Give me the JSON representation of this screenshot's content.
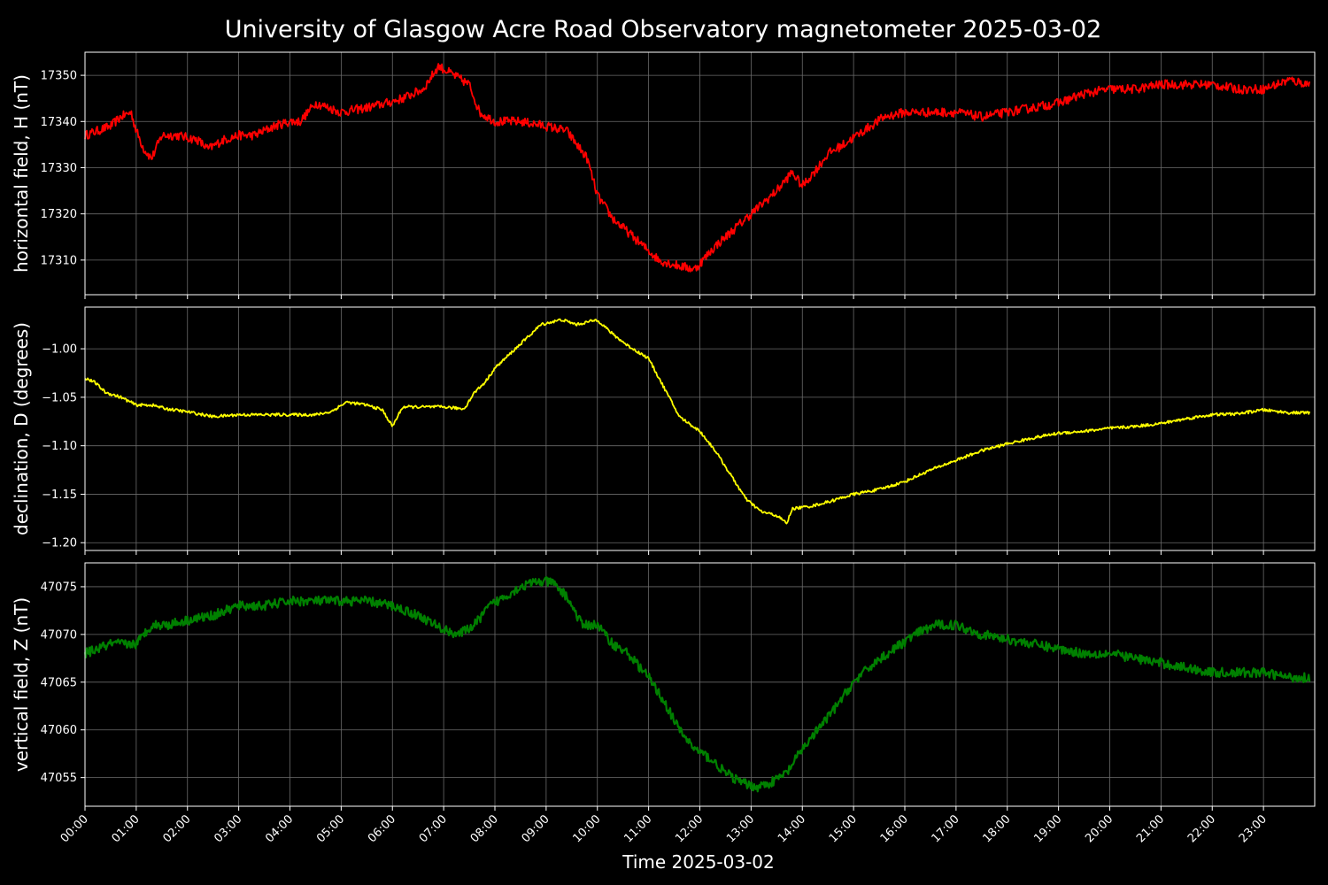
{
  "chart_data": {
    "type": "line",
    "title": "University of Glasgow Acre Road Observatory magnetometer 2025-03-02",
    "xlabel": "Time 2025-03-02",
    "x_unit": "hours",
    "xlim": [
      0,
      24
    ],
    "x_tick_labels": [
      "00:00",
      "01:00",
      "02:00",
      "03:00",
      "04:00",
      "05:00",
      "06:00",
      "07:00",
      "08:00",
      "09:00",
      "10:00",
      "11:00",
      "12:00",
      "13:00",
      "14:00",
      "15:00",
      "16:00",
      "17:00",
      "18:00",
      "19:00",
      "20:00",
      "21:00",
      "22:00",
      "23:00"
    ],
    "grid": true,
    "panels": [
      {
        "ylabel": "horizontal field, H (nT)",
        "color": "#ff0000",
        "ylim": [
          17302.5,
          17355
        ],
        "y_ticks": [
          17310,
          17320,
          17330,
          17340,
          17350
        ],
        "y_tick_labels": [
          "17310",
          "17320",
          "17330",
          "17340",
          "17350"
        ],
        "noise": 1.0,
        "x": [
          0,
          0.25,
          0.5,
          0.7,
          0.9,
          1.0,
          1.15,
          1.3,
          1.5,
          1.8,
          2.2,
          2.4,
          2.7,
          3.0,
          3.3,
          3.7,
          4.0,
          4.2,
          4.5,
          5.0,
          5.5,
          5.9,
          6.2,
          6.6,
          6.9,
          7.2,
          7.5,
          7.7,
          8.0,
          8.5,
          9.0,
          9.4,
          9.8,
          10.0,
          10.3,
          10.6,
          10.9,
          11.2,
          11.5,
          11.9,
          12.3,
          12.7,
          13.1,
          13.5,
          13.8,
          14.0,
          14.3,
          14.5,
          14.8,
          15.2,
          15.6,
          16.0,
          16.5,
          17.0,
          17.5,
          18.0,
          18.5,
          19.0,
          19.5,
          20.0,
          20.5,
          21.0,
          21.5,
          22.0,
          22.5,
          23.0,
          23.5,
          23.9
        ],
        "y": [
          17337,
          17338,
          17339,
          17341,
          17342,
          17338,
          17334,
          17332,
          17337,
          17337,
          17336,
          17334,
          17336,
          17337,
          17337,
          17339,
          17340,
          17340,
          17344,
          17342,
          17343,
          17344,
          17345,
          17347,
          17352,
          17350,
          17348,
          17342,
          17340,
          17340,
          17339,
          17338,
          17332,
          17324,
          17319,
          17316,
          17313,
          17310,
          17309,
          17308,
          17313,
          17317,
          17321,
          17325,
          17329,
          17326,
          17330,
          17333,
          17335,
          17338,
          17341,
          17342,
          17342,
          17342,
          17341,
          17342,
          17343,
          17344,
          17346,
          17347,
          17347,
          17348,
          17348,
          17348,
          17347,
          17347,
          17349,
          17348
        ]
      },
      {
        "ylabel": "declination, D (degrees)",
        "color": "#ffff00",
        "ylim": [
          -1.208,
          -0.957
        ],
        "y_ticks": [
          -1.2,
          -1.15,
          -1.1,
          -1.05,
          -1.0
        ],
        "y_tick_labels": [
          "−1.20",
          "−1.15",
          "−1.10",
          "−1.05",
          "−1.00"
        ],
        "noise": 0.0015,
        "x": [
          0,
          0.2,
          0.4,
          0.7,
          1.0,
          1.3,
          1.6,
          2.0,
          2.5,
          3.0,
          3.5,
          4.0,
          4.5,
          4.8,
          5.1,
          5.5,
          5.8,
          6.0,
          6.2,
          6.5,
          7.0,
          7.4,
          7.6,
          7.8,
          8.0,
          8.3,
          8.6,
          8.9,
          9.3,
          9.6,
          10.0,
          10.3,
          10.6,
          11.0,
          11.3,
          11.6,
          12.0,
          12.3,
          12.6,
          12.9,
          13.2,
          13.5,
          13.7,
          13.8,
          14.2,
          14.5,
          15.0,
          15.5,
          16.0,
          16.5,
          17.0,
          17.5,
          18.0,
          18.5,
          19.0,
          19.5,
          20.0,
          20.5,
          21.0,
          21.5,
          22.0,
          22.5,
          23.0,
          23.5,
          23.9
        ],
        "y": [
          -1.03,
          -1.035,
          -1.045,
          -1.05,
          -1.058,
          -1.058,
          -1.062,
          -1.065,
          -1.07,
          -1.068,
          -1.068,
          -1.068,
          -1.068,
          -1.065,
          -1.055,
          -1.058,
          -1.063,
          -1.08,
          -1.06,
          -1.06,
          -1.06,
          -1.062,
          -1.045,
          -1.035,
          -1.02,
          -1.005,
          -0.99,
          -0.975,
          -0.97,
          -0.975,
          -0.97,
          -0.985,
          -0.997,
          -1.01,
          -1.04,
          -1.07,
          -1.085,
          -1.105,
          -1.13,
          -1.155,
          -1.168,
          -1.172,
          -1.18,
          -1.165,
          -1.162,
          -1.158,
          -1.15,
          -1.145,
          -1.137,
          -1.125,
          -1.115,
          -1.105,
          -1.098,
          -1.092,
          -1.087,
          -1.085,
          -1.082,
          -1.08,
          -1.077,
          -1.072,
          -1.068,
          -1.067,
          -1.063,
          -1.066,
          -1.066
        ]
      },
      {
        "ylabel": "vertical field, Z (nT)",
        "color": "#008000",
        "ylim": [
          47052,
          47077.5
        ],
        "y_ticks": [
          47055,
          47060,
          47065,
          47070,
          47075
        ],
        "y_tick_labels": [
          "47055",
          "47060",
          "47065",
          "47070",
          "47075"
        ],
        "noise": 0.5,
        "x": [
          0,
          0.5,
          1.0,
          1.3,
          1.6,
          2.0,
          2.5,
          3.0,
          3.5,
          4.0,
          4.5,
          5.0,
          5.5,
          6.0,
          6.5,
          7.0,
          7.3,
          7.6,
          7.9,
          8.2,
          8.5,
          8.8,
          9.1,
          9.4,
          9.7,
          10.0,
          10.3,
          10.6,
          11.0,
          11.3,
          11.6,
          11.9,
          12.2,
          12.5,
          12.8,
          13.1,
          13.4,
          13.7,
          14.0,
          14.3,
          14.6,
          15.0,
          15.4,
          15.8,
          16.2,
          16.6,
          17.0,
          17.5,
          18.0,
          18.5,
          19.0,
          19.5,
          20.0,
          20.5,
          21.0,
          21.5,
          22.0,
          22.5,
          23.0,
          23.5,
          23.9
        ],
        "y": [
          47068,
          47069,
          47069,
          47071,
          47071,
          47071.5,
          47072,
          47073,
          47073,
          47073.5,
          47073.5,
          47073.5,
          47073.5,
          47073,
          47072,
          47070.5,
          47070,
          47071,
          47073,
          47074,
          47075,
          47075.5,
          47075.5,
          47074,
          47071,
          47071,
          47069,
          47068,
          47065.5,
          47063,
          47060,
          47058,
          47057,
          47055.5,
          47054.5,
          47054,
          47054.5,
          47055.5,
          47058,
          47060,
          47062,
          47065,
          47067,
          47068.5,
          47070,
          47071,
          47071,
          47070,
          47069.5,
          47069,
          47068.5,
          47068,
          47068,
          47067.5,
          47067,
          47066.5,
          47066,
          47066,
          47066,
          47065.5,
          47065.5
        ]
      }
    ]
  }
}
